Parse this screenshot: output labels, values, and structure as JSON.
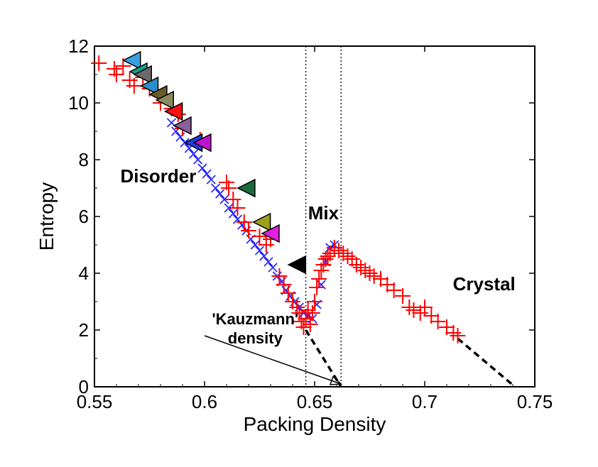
{
  "chart_data": {
    "type": "scatter",
    "xlabel": "Packing Density",
    "ylabel": "Entropy",
    "xlim": [
      0.55,
      0.75
    ],
    "ylim": [
      0,
      12
    ],
    "xticks": [
      0.55,
      0.6,
      0.65,
      0.7,
      0.75
    ],
    "xtick_labels": [
      "0.55",
      "0.6",
      "0.65",
      "0.7",
      "0.75"
    ],
    "yticks": [
      0,
      2,
      4,
      6,
      8,
      10,
      12
    ],
    "ytick_labels": [
      "0",
      "2",
      "4",
      "6",
      "8",
      "10",
      "12"
    ],
    "grid": false,
    "regions": [
      {
        "label": "Disorder",
        "x": 0.579,
        "y": 7.2
      },
      {
        "label": "Mix",
        "x": 0.654,
        "y": 5.9
      },
      {
        "label": "Crystal",
        "x": 0.727,
        "y": 3.4
      }
    ],
    "annotation": {
      "lines": [
        "'Kauzmann'",
        "density"
      ],
      "text_x": 0.623,
      "text_y": 2.2,
      "arrow_from": [
        0.6,
        1.8
      ],
      "arrow_to": [
        0.662,
        0.1
      ]
    },
    "vlines": [
      0.646,
      0.662
    ],
    "dashed_extrapolations": [
      {
        "x": [
          0.646,
          0.662
        ],
        "y": [
          2.0,
          0.0
        ]
      },
      {
        "x": [
          0.715,
          0.741
        ],
        "y": [
          1.7,
          0.0
        ]
      }
    ],
    "colors": {
      "plus_marker": "#ff0000",
      "x_marker": "#2020ff",
      "dashed": "#000000",
      "vline": "#000000"
    },
    "series": [
      {
        "marker": "x",
        "x": [
          0.585,
          0.587,
          0.589,
          0.591,
          0.593,
          0.595,
          0.597,
          0.599,
          0.601,
          0.603,
          0.605,
          0.607,
          0.609,
          0.611,
          0.613,
          0.615,
          0.617,
          0.619,
          0.621,
          0.623,
          0.625,
          0.627,
          0.629,
          0.631,
          0.633,
          0.635,
          0.637,
          0.639,
          0.641,
          0.643,
          0.645,
          0.647,
          0.649,
          0.651,
          0.653,
          0.655,
          0.657,
          0.659
        ],
        "y": [
          9.3,
          9.0,
          8.8,
          8.6,
          8.4,
          8.2,
          8.0,
          7.7,
          7.5,
          7.3,
          7.0,
          6.8,
          6.6,
          6.3,
          6.1,
          5.9,
          5.7,
          5.5,
          5.2,
          5.0,
          4.8,
          4.6,
          4.4,
          4.2,
          3.9,
          3.7,
          3.4,
          3.2,
          3.0,
          2.8,
          2.6,
          2.5,
          2.4,
          2.9,
          3.6,
          4.4,
          4.9,
          5.0
        ]
      },
      {
        "marker": "plus",
        "x": [
          0.552,
          0.559,
          0.56,
          0.563,
          0.566,
          0.568,
          0.572,
          0.575,
          0.58,
          0.585,
          0.588,
          0.59,
          0.598,
          0.61,
          0.611,
          0.613,
          0.615,
          0.618,
          0.62,
          0.625,
          0.628,
          0.63,
          0.634,
          0.636,
          0.638,
          0.64,
          0.642,
          0.643,
          0.644,
          0.645,
          0.646,
          0.647,
          0.648,
          0.649,
          0.65,
          0.651,
          0.652,
          0.653,
          0.654,
          0.655,
          0.656,
          0.657,
          0.659,
          0.661,
          0.663,
          0.665,
          0.667,
          0.669,
          0.671,
          0.673,
          0.675,
          0.677,
          0.68,
          0.683,
          0.686,
          0.69,
          0.693,
          0.695,
          0.698,
          0.7,
          0.703,
          0.706,
          0.71,
          0.713,
          0.715
        ],
        "y": [
          11.4,
          11.2,
          11.0,
          11.3,
          10.8,
          10.6,
          10.9,
          10.5,
          10.0,
          9.8,
          9.6,
          9.1,
          8.7,
          7.2,
          7.0,
          6.6,
          6.3,
          5.8,
          5.5,
          5.3,
          5.0,
          5.2,
          3.9,
          3.6,
          3.3,
          3.0,
          2.8,
          2.6,
          2.3,
          2.1,
          2.4,
          2.7,
          2.2,
          2.6,
          3.0,
          3.5,
          3.8,
          4.1,
          4.3,
          4.5,
          4.6,
          4.7,
          4.9,
          4.8,
          4.7,
          4.6,
          4.5,
          4.3,
          4.2,
          4.1,
          4.0,
          3.9,
          3.8,
          3.6,
          3.4,
          3.2,
          2.8,
          2.7,
          2.6,
          2.8,
          2.5,
          2.3,
          2.1,
          1.9,
          1.8
        ]
      },
      {
        "marker": "triangles",
        "points": [
          {
            "x": 0.567,
            "y": 11.5,
            "color": "#3aa0e0"
          },
          {
            "x": 0.57,
            "y": 11.1,
            "color": "#12a08a"
          },
          {
            "x": 0.572,
            "y": 11.0,
            "color": "#6a6a6a"
          },
          {
            "x": 0.575,
            "y": 10.6,
            "color": "#2a8fc8"
          },
          {
            "x": 0.579,
            "y": 10.3,
            "color": "#6b5a2a"
          },
          {
            "x": 0.582,
            "y": 10.1,
            "color": "#8b8b60"
          },
          {
            "x": 0.586,
            "y": 9.7,
            "color": "#ff1010"
          },
          {
            "x": 0.59,
            "y": 9.2,
            "color": "#8a5f9a"
          },
          {
            "x": 0.595,
            "y": 8.6,
            "color": "#1f3fe0"
          },
          {
            "x": 0.599,
            "y": 8.6,
            "color": "#c010d0"
          },
          {
            "x": 0.619,
            "y": 7.0,
            "color": "#1a6b3a"
          },
          {
            "x": 0.626,
            "y": 5.8,
            "color": "#9aa01a"
          },
          {
            "x": 0.63,
            "y": 5.4,
            "color": "#e020e0"
          },
          {
            "x": 0.642,
            "y": 4.3,
            "color": "#000000"
          }
        ]
      }
    ]
  }
}
